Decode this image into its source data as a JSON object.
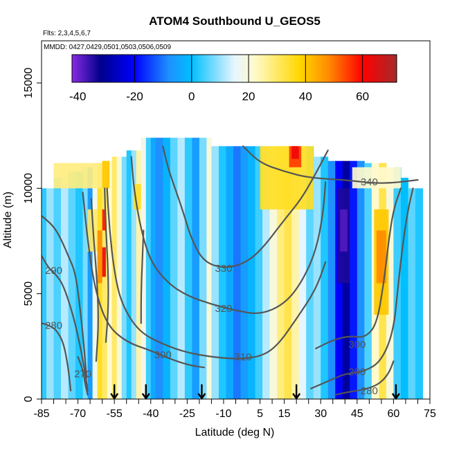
{
  "chart_data": {
    "type": "heatmap",
    "title": "ATOM4 Southbound U_GEOS5",
    "flights_note": "Flts: 2,3,4,5,6,7",
    "dates_note": "MMDD: 0427,0429,0501,0503,0506,0509",
    "xlabel": "Latitude (deg N)",
    "ylabel": "Altitude (m)",
    "xlim": [
      -85,
      75
    ],
    "ylim": [
      0,
      17000
    ],
    "x_tick_labels": [
      -85,
      -70,
      -55,
      -40,
      -25,
      -10,
      5,
      15,
      30,
      45,
      60,
      75
    ],
    "x_minor_ticks": [
      -80,
      -75,
      -65,
      -60,
      -50,
      -45,
      -35,
      -30,
      -20,
      -15,
      -5,
      0,
      10,
      20,
      25,
      35,
      40,
      50,
      55,
      65,
      70
    ],
    "y_tick_labels": [
      0,
      5000,
      10000,
      15000
    ],
    "colorbar": {
      "range": [
        -42,
        72
      ],
      "tick_labels": [
        -40,
        -20,
        0,
        20,
        40,
        60
      ],
      "divider_lines": [
        -20,
        0,
        20,
        40,
        60
      ],
      "colors": [
        "#8a2be2",
        "#00008b",
        "#0000ff",
        "#1e90ff",
        "#00bfff",
        "#e6f5ff",
        "#fffacd",
        "#ffd700",
        "#ff8c00",
        "#ff0000",
        "#a52a2a"
      ],
      "color_stops": [
        -42,
        -32,
        -20,
        -8,
        0,
        15,
        22,
        38,
        48,
        60,
        72
      ]
    },
    "wind_columns": [
      {
        "lat_start": -85,
        "lat_end": -83,
        "alt_top": 10000,
        "u": 3
      },
      {
        "lat_start": -83,
        "lat_end": -80,
        "alt_top": 10000,
        "u": 10
      },
      {
        "lat_start": -80,
        "lat_end": -77,
        "alt_top": 10500,
        "u": 5
      },
      {
        "lat_start": -77,
        "lat_end": -74,
        "alt_top": 10500,
        "u": 12
      },
      {
        "lat_start": -74,
        "lat_end": -71,
        "alt_top": 10800,
        "u": 6
      },
      {
        "lat_start": -71,
        "lat_end": -68,
        "alt_top": 10800,
        "u": 2
      },
      {
        "lat_start": -68,
        "lat_end": -66,
        "alt_top": 11000,
        "u": 8
      },
      {
        "lat_start": -66,
        "lat_end": -64,
        "alt_top": 11000,
        "u": -6
      },
      {
        "lat_start": -64,
        "lat_end": -62,
        "alt_top": 11200,
        "u": 18
      },
      {
        "lat_start": -62,
        "lat_end": -60,
        "alt_top": 11200,
        "u": 35
      },
      {
        "lat_start": -60,
        "lat_end": -58,
        "alt_top": 11300,
        "u": 30
      },
      {
        "lat_start": -58,
        "lat_end": -56,
        "alt_top": 11300,
        "u": 22
      },
      {
        "lat_start": -56,
        "lat_end": -54,
        "alt_top": 11500,
        "u": 30
      },
      {
        "lat_start": -54,
        "lat_end": -52,
        "alt_top": 11500,
        "u": 20
      },
      {
        "lat_start": -52,
        "lat_end": -50,
        "alt_top": 11500,
        "u": 8
      },
      {
        "lat_start": -50,
        "lat_end": -48,
        "alt_top": 11800,
        "u": 2
      },
      {
        "lat_start": -48,
        "lat_end": -46,
        "alt_top": 11800,
        "u": 10
      },
      {
        "lat_start": -46,
        "lat_end": -44,
        "alt_top": 11800,
        "u": 25
      },
      {
        "lat_start": -44,
        "lat_end": -42,
        "alt_top": 12400,
        "u": 18
      },
      {
        "lat_start": -42,
        "lat_end": -40,
        "alt_top": 12400,
        "u": 4
      },
      {
        "lat_start": -40,
        "lat_end": -38,
        "alt_top": 12400,
        "u": -4
      },
      {
        "lat_start": -38,
        "lat_end": -35,
        "alt_top": 12400,
        "u": -8
      },
      {
        "lat_start": -35,
        "lat_end": -32,
        "alt_top": 12400,
        "u": -2
      },
      {
        "lat_start": -32,
        "lat_end": -29,
        "alt_top": 12400,
        "u": 6
      },
      {
        "lat_start": -29,
        "lat_end": -26,
        "alt_top": 12400,
        "u": 12
      },
      {
        "lat_start": -26,
        "lat_end": -23,
        "alt_top": 12400,
        "u": 3
      },
      {
        "lat_start": -23,
        "lat_end": -20,
        "alt_top": 12400,
        "u": -6
      },
      {
        "lat_start": -20,
        "lat_end": -17,
        "alt_top": 12400,
        "u": 8
      },
      {
        "lat_start": -17,
        "lat_end": -15,
        "alt_top": 12400,
        "u": 20
      },
      {
        "lat_start": -15,
        "lat_end": -12,
        "alt_top": 12000,
        "u": 10
      },
      {
        "lat_start": -12,
        "lat_end": -9,
        "alt_top": 12000,
        "u": 2
      },
      {
        "lat_start": -9,
        "lat_end": -6,
        "alt_top": 12000,
        "u": -4
      },
      {
        "lat_start": -6,
        "lat_end": -3,
        "alt_top": 12000,
        "u": -10
      },
      {
        "lat_start": -3,
        "lat_end": 0,
        "alt_top": 12000,
        "u": -6
      },
      {
        "lat_start": 0,
        "lat_end": 3,
        "alt_top": 12000,
        "u": -2
      },
      {
        "lat_start": 3,
        "lat_end": 6,
        "alt_top": 12000,
        "u": 4
      },
      {
        "lat_start": 6,
        "lat_end": 9,
        "alt_top": 12000,
        "u": 12
      },
      {
        "lat_start": 9,
        "lat_end": 12,
        "alt_top": 12000,
        "u": 20
      },
      {
        "lat_start": 12,
        "lat_end": 15,
        "alt_top": 12000,
        "u": 28
      },
      {
        "lat_start": 15,
        "lat_end": 18,
        "alt_top": 12000,
        "u": 32
      },
      {
        "lat_start": 18,
        "lat_end": 21,
        "alt_top": 12000,
        "u": 25
      },
      {
        "lat_start": 21,
        "lat_end": 24,
        "alt_top": 12000,
        "u": 15
      },
      {
        "lat_start": 24,
        "lat_end": 27,
        "alt_top": 12000,
        "u": 6
      },
      {
        "lat_start": 27,
        "lat_end": 30,
        "alt_top": 11500,
        "u": 10
      },
      {
        "lat_start": 30,
        "lat_end": 33,
        "alt_top": 11500,
        "u": 2
      },
      {
        "lat_start": 33,
        "lat_end": 36,
        "alt_top": 11300,
        "u": -8
      },
      {
        "lat_start": 36,
        "lat_end": 39,
        "alt_top": 11300,
        "u": -20
      },
      {
        "lat_start": 39,
        "lat_end": 42,
        "alt_top": 11300,
        "u": -30
      },
      {
        "lat_start": 42,
        "lat_end": 45,
        "alt_top": 11300,
        "u": -18
      },
      {
        "lat_start": 45,
        "lat_end": 48,
        "alt_top": 11300,
        "u": -8
      },
      {
        "lat_start": 48,
        "lat_end": 51,
        "alt_top": 11200,
        "u": 5
      },
      {
        "lat_start": 51,
        "lat_end": 54,
        "alt_top": 11200,
        "u": 22
      },
      {
        "lat_start": 54,
        "lat_end": 57,
        "alt_top": 11200,
        "u": 32
      },
      {
        "lat_start": 57,
        "lat_end": 60,
        "alt_top": 11000,
        "u": 20
      },
      {
        "lat_start": 60,
        "lat_end": 63,
        "alt_top": 11000,
        "u": 4
      },
      {
        "lat_start": 63,
        "lat_end": 66,
        "alt_top": 10500,
        "u": 0
      },
      {
        "lat_start": 66,
        "lat_end": 69,
        "alt_top": 10000,
        "u": 6
      },
      {
        "lat_start": 69,
        "lat_end": 72,
        "alt_top": 10000,
        "u": 2
      }
    ],
    "wind_patches": [
      {
        "lat_start": 5,
        "lat_end": 27,
        "alt_bottom": 9000,
        "alt_top": 12000,
        "u": 35
      },
      {
        "lat_start": 17,
        "lat_end": 22,
        "alt_bottom": 11000,
        "alt_top": 12000,
        "u": 55
      },
      {
        "lat_start": 18,
        "lat_end": 21,
        "alt_bottom": 11400,
        "alt_top": 12000,
        "u": 62
      },
      {
        "lat_start": -80,
        "lat_end": -57,
        "alt_bottom": 10000,
        "alt_top": 11200,
        "u": 28
      },
      {
        "lat_start": -60,
        "lat_end": -57,
        "alt_bottom": 10000,
        "alt_top": 11300,
        "u": 40
      },
      {
        "lat_start": -47,
        "lat_end": -44,
        "alt_bottom": 9000,
        "alt_top": 10200,
        "u": 35
      },
      {
        "lat_start": -66,
        "lat_end": -62,
        "alt_bottom": 7000,
        "alt_top": 9000,
        "u": 30
      },
      {
        "lat_start": -62,
        "lat_end": -60,
        "alt_bottom": 5500,
        "alt_top": 8000,
        "u": 48
      },
      {
        "lat_start": -60,
        "lat_end": -58.5,
        "alt_bottom": 8000,
        "alt_top": 9000,
        "u": 58
      },
      {
        "lat_start": -60,
        "lat_end": -58.5,
        "alt_bottom": 5800,
        "alt_top": 7200,
        "u": 62
      },
      {
        "lat_start": 52,
        "lat_end": 58,
        "alt_bottom": 4000,
        "alt_top": 9000,
        "u": 40
      },
      {
        "lat_start": 53,
        "lat_end": 57,
        "alt_bottom": 5500,
        "alt_top": 8000,
        "u": 48
      },
      {
        "lat_start": 37,
        "lat_end": 42,
        "alt_bottom": 5500,
        "alt_top": 10000,
        "u": -34
      },
      {
        "lat_start": 38,
        "lat_end": 41,
        "alt_bottom": 7000,
        "alt_top": 9000,
        "u": -38
      },
      {
        "lat_start": 43,
        "lat_end": 63,
        "alt_bottom": 10000,
        "alt_top": 11000,
        "u": 22
      }
    ],
    "contours": [
      {
        "label": "340",
        "label_pos": [
          50,
          10300
        ],
        "points": [
          [
            -2,
            12000
          ],
          [
            5,
            11200
          ],
          [
            15,
            10800
          ],
          [
            25,
            10500
          ],
          [
            40,
            10400
          ],
          [
            55,
            10200
          ],
          [
            70,
            10400
          ]
        ]
      },
      {
        "label": "330",
        "label_pos": [
          -10,
          6200
        ],
        "points": [
          [
            -35,
            12000
          ],
          [
            -33,
            11000
          ],
          [
            -30,
            10000
          ],
          [
            -27,
            9000
          ],
          [
            -23,
            7500
          ],
          [
            -18,
            6500
          ],
          [
            -10,
            6200
          ],
          [
            -2,
            6400
          ],
          [
            5,
            7000
          ],
          [
            15,
            8500
          ],
          [
            22,
            9500
          ],
          [
            27,
            10500
          ],
          [
            33,
            11800
          ]
        ]
      },
      {
        "label": "320",
        "label_pos": [
          -10,
          4300
        ],
        "points": [
          [
            -48,
            11500
          ],
          [
            -47,
            10000
          ],
          [
            -44,
            8000
          ],
          [
            -40,
            6500
          ],
          [
            -33,
            5500
          ],
          [
            -25,
            4900
          ],
          [
            -15,
            4500
          ],
          [
            -5,
            4200
          ],
          [
            5,
            4000
          ],
          [
            15,
            4500
          ],
          [
            22,
            5500
          ],
          [
            28,
            7000
          ],
          [
            31,
            8800
          ],
          [
            32,
            10300
          ]
        ]
      },
      {
        "label": "310",
        "label_pos": [
          -2,
          2000
        ],
        "points": [
          [
            -58,
            10000
          ],
          [
            -57,
            8000
          ],
          [
            -55,
            6000
          ],
          [
            -52,
            4500
          ],
          [
            -45,
            3200
          ],
          [
            -35,
            2600
          ],
          [
            -25,
            2200
          ],
          [
            -15,
            2000
          ],
          [
            -5,
            1900
          ],
          [
            5,
            2000
          ],
          [
            12,
            2500
          ],
          [
            20,
            3800
          ],
          [
            28,
            5200
          ],
          [
            32,
            6500
          ]
        ]
      },
      {
        "label": "300",
        "label_pos": [
          -35,
          2100
        ],
        "points": [
          [
            -68,
            9800
          ],
          [
            -66,
            7500
          ],
          [
            -63,
            5200
          ],
          [
            -58,
            3500
          ],
          [
            -50,
            2700
          ],
          [
            -40,
            2300
          ],
          [
            -32,
            1900
          ],
          [
            -24,
            1600
          ],
          [
            -18,
            1500
          ]
        ]
      },
      {
        "label": "300",
        "label_pos": [
          45,
          2600
        ],
        "points": [
          [
            28,
            2400
          ],
          [
            35,
            2800
          ],
          [
            42,
            3000
          ],
          [
            48,
            2900
          ],
          [
            53,
            3500
          ],
          [
            56,
            5500
          ],
          [
            58,
            7500
          ],
          [
            60,
            9000
          ],
          [
            63,
            10000
          ]
        ]
      },
      {
        "label": "290",
        "label_pos": [
          -80,
          6100
        ],
        "points": [
          [
            -85,
            6800
          ],
          [
            -82,
            6200
          ],
          [
            -79,
            5900
          ],
          [
            -76,
            5400
          ],
          [
            -72,
            4000
          ],
          [
            -69,
            2500
          ],
          [
            -67,
            1200
          ],
          [
            -66,
            400
          ]
        ]
      },
      {
        "label": "290",
        "label_pos": [
          45,
          1300
        ],
        "points": [
          [
            26,
            500
          ],
          [
            34,
            900
          ],
          [
            40,
            1200
          ],
          [
            48,
            1300
          ],
          [
            55,
            1800
          ],
          [
            60,
            3200
          ],
          [
            62,
            5500
          ],
          [
            64,
            7500
          ],
          [
            66,
            9000
          ],
          [
            68,
            10000
          ]
        ]
      },
      {
        "label": "280",
        "label_pos": [
          -80,
          3500
        ],
        "points": [
          [
            -85,
            3600
          ],
          [
            -82,
            3500
          ],
          [
            -79,
            3300
          ],
          [
            -76,
            2700
          ],
          [
            -74,
            1500
          ],
          [
            -73,
            400
          ]
        ]
      },
      {
        "label": "280",
        "label_pos": [
          50,
          400
        ],
        "points": [
          [
            36,
            200
          ],
          [
            42,
            350
          ],
          [
            48,
            450
          ],
          [
            54,
            700
          ],
          [
            58,
            1200
          ],
          [
            60,
            1800
          ]
        ]
      },
      {
        "label": "270",
        "label_pos": [
          -68,
          1200
        ],
        "points": [
          [
            -70,
            2000
          ],
          [
            -68,
            1400
          ],
          [
            -67,
            700
          ],
          [
            -66,
            200
          ]
        ]
      },
      {
        "label": "",
        "label_pos": [
          -74,
          7000
        ],
        "points": [
          [
            -85,
            8700
          ],
          [
            -80,
            8200
          ],
          [
            -77,
            7600
          ],
          [
            -74,
            6800
          ],
          [
            -71,
            6000
          ],
          [
            -69,
            4200
          ],
          [
            -67.5,
            2500
          ],
          [
            -66.5,
            1000
          ]
        ]
      },
      {
        "label": "",
        "label_pos": [
          -63,
          7000
        ],
        "points": [
          [
            -64.5,
            9500
          ],
          [
            -63.5,
            7500
          ],
          [
            -62,
            5500
          ],
          [
            -61.5,
            3500
          ],
          [
            -62.5,
            1800
          ]
        ]
      },
      {
        "label": "",
        "label_pos": [
          -58,
          7000
        ],
        "points": [
          [
            -59,
            10000
          ],
          [
            -58.5,
            8000
          ],
          [
            -57.5,
            6000
          ],
          [
            -57.5,
            4200
          ],
          [
            -58.5,
            2700
          ]
        ]
      },
      {
        "label": "",
        "label_pos": [
          -42,
          5000
        ],
        "points": [
          [
            -43,
            8000
          ],
          [
            -43.5,
            6500
          ],
          [
            -44,
            5000
          ],
          [
            -44,
            3600
          ]
        ]
      }
    ],
    "flight_arrows_lat": [
      -55,
      -42,
      -19,
      20,
      61
    ],
    "flight_arrows_top_alt": 700
  }
}
